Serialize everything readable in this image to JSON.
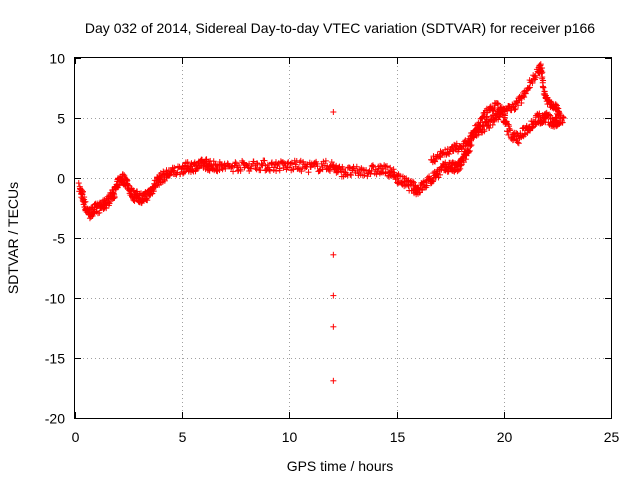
{
  "chart_data": {
    "type": "scatter",
    "title": "Day 032 of 2014, Sidereal Day-to-day VTEC variation (SDTVAR) for receiver p166",
    "xlabel": "GPS time / hours",
    "ylabel": "SDTVAR / TECUs",
    "xlim": [
      0,
      25
    ],
    "ylim": [
      -20,
      10
    ],
    "xticks": [
      0,
      5,
      10,
      15,
      20,
      25
    ],
    "yticks": [
      -20,
      -15,
      -10,
      -5,
      0,
      5,
      10
    ],
    "xtick_labels": [
      "0",
      "5",
      "10",
      "15",
      "20",
      "25"
    ],
    "ytick_labels": [
      "-20",
      "-15",
      "-10",
      "-5",
      "0",
      "5",
      "10"
    ],
    "grid": true,
    "marker": "+",
    "color": "#ff0000",
    "series": [
      {
        "name": "SDTVAR",
        "band_points": [
          [
            0.2,
            -0.8
          ],
          [
            0.35,
            -1.5
          ],
          [
            0.5,
            -2.5
          ],
          [
            0.7,
            -3.0
          ],
          [
            0.9,
            -2.6
          ],
          [
            1.1,
            -2.5
          ],
          [
            1.3,
            -2.3
          ],
          [
            1.5,
            -2.0
          ],
          [
            1.7,
            -1.5
          ],
          [
            1.85,
            -1.2
          ],
          [
            2.0,
            -0.4
          ],
          [
            2.2,
            0.0
          ],
          [
            2.4,
            -0.3
          ],
          [
            2.6,
            -1.2
          ],
          [
            2.8,
            -1.5
          ],
          [
            3.0,
            -1.6
          ],
          [
            3.2,
            -1.7
          ],
          [
            3.4,
            -1.4
          ],
          [
            3.6,
            -1.0
          ],
          [
            3.8,
            -0.3
          ],
          [
            4.0,
            0.0
          ],
          [
            4.3,
            0.3
          ],
          [
            4.6,
            0.5
          ],
          [
            5.0,
            0.8
          ],
          [
            5.3,
            0.9
          ],
          [
            5.6,
            1.0
          ],
          [
            5.9,
            1.1
          ],
          [
            6.1,
            1.2
          ],
          [
            6.3,
            1.0
          ],
          [
            6.6,
            1.0
          ],
          [
            7.0,
            0.9
          ],
          [
            7.5,
            1.0
          ],
          [
            8.0,
            1.0
          ],
          [
            8.5,
            1.1
          ],
          [
            9.0,
            1.0
          ],
          [
            9.5,
            1.0
          ],
          [
            10.0,
            1.0
          ],
          [
            10.5,
            1.0
          ],
          [
            11.0,
            0.9
          ],
          [
            11.5,
            1.0
          ],
          [
            12.0,
            1.0
          ],
          [
            12.3,
            0.6
          ],
          [
            12.7,
            0.5
          ],
          [
            13.2,
            0.5
          ],
          [
            13.7,
            0.6
          ],
          [
            14.2,
            0.7
          ],
          [
            14.6,
            0.6
          ],
          [
            14.9,
            0.2
          ],
          [
            15.2,
            -0.2
          ],
          [
            15.5,
            -0.5
          ],
          [
            15.8,
            -0.8
          ],
          [
            16.0,
            -1.0
          ],
          [
            16.3,
            -0.6
          ],
          [
            16.6,
            -0.1
          ],
          [
            16.9,
            0.4
          ],
          [
            17.2,
            0.8
          ],
          [
            17.5,
            1.0
          ],
          [
            17.7,
            0.8
          ],
          [
            17.9,
            0.9
          ],
          [
            18.1,
            1.5
          ],
          [
            18.3,
            2.2
          ],
          [
            18.5,
            3.2
          ],
          [
            18.8,
            3.9
          ],
          [
            19.1,
            4.3
          ],
          [
            19.4,
            4.7
          ],
          [
            19.7,
            5.2
          ],
          [
            19.9,
            5.6
          ],
          [
            20.1,
            4.4
          ],
          [
            20.4,
            3.5
          ],
          [
            20.7,
            3.3
          ],
          [
            21.0,
            4.0
          ],
          [
            21.3,
            4.5
          ],
          [
            21.6,
            5.0
          ],
          [
            21.8,
            4.9
          ],
          [
            22.0,
            5.1
          ],
          [
            22.3,
            4.5
          ],
          [
            22.5,
            4.7
          ],
          [
            22.8,
            5.0
          ]
        ],
        "upper_branch_points": [
          [
            16.6,
            1.5
          ],
          [
            17.1,
            2.0
          ],
          [
            17.6,
            2.4
          ],
          [
            18.0,
            2.6
          ],
          [
            18.4,
            3.1
          ],
          [
            18.8,
            4.5
          ],
          [
            19.2,
            5.4
          ],
          [
            19.6,
            6.0
          ],
          [
            20.0,
            5.6
          ],
          [
            20.4,
            5.8
          ],
          [
            20.8,
            6.6
          ],
          [
            21.2,
            7.8
          ],
          [
            21.6,
            8.9
          ],
          [
            21.75,
            9.2
          ],
          [
            21.9,
            7.0
          ],
          [
            22.1,
            6.3
          ],
          [
            22.4,
            5.9
          ],
          [
            22.6,
            5.4
          ]
        ],
        "outliers": [
          [
            12.05,
            5.5
          ],
          [
            12.05,
            -6.4
          ],
          [
            12.05,
            -9.8
          ],
          [
            12.05,
            -12.4
          ],
          [
            12.05,
            -16.9
          ]
        ]
      }
    ]
  }
}
